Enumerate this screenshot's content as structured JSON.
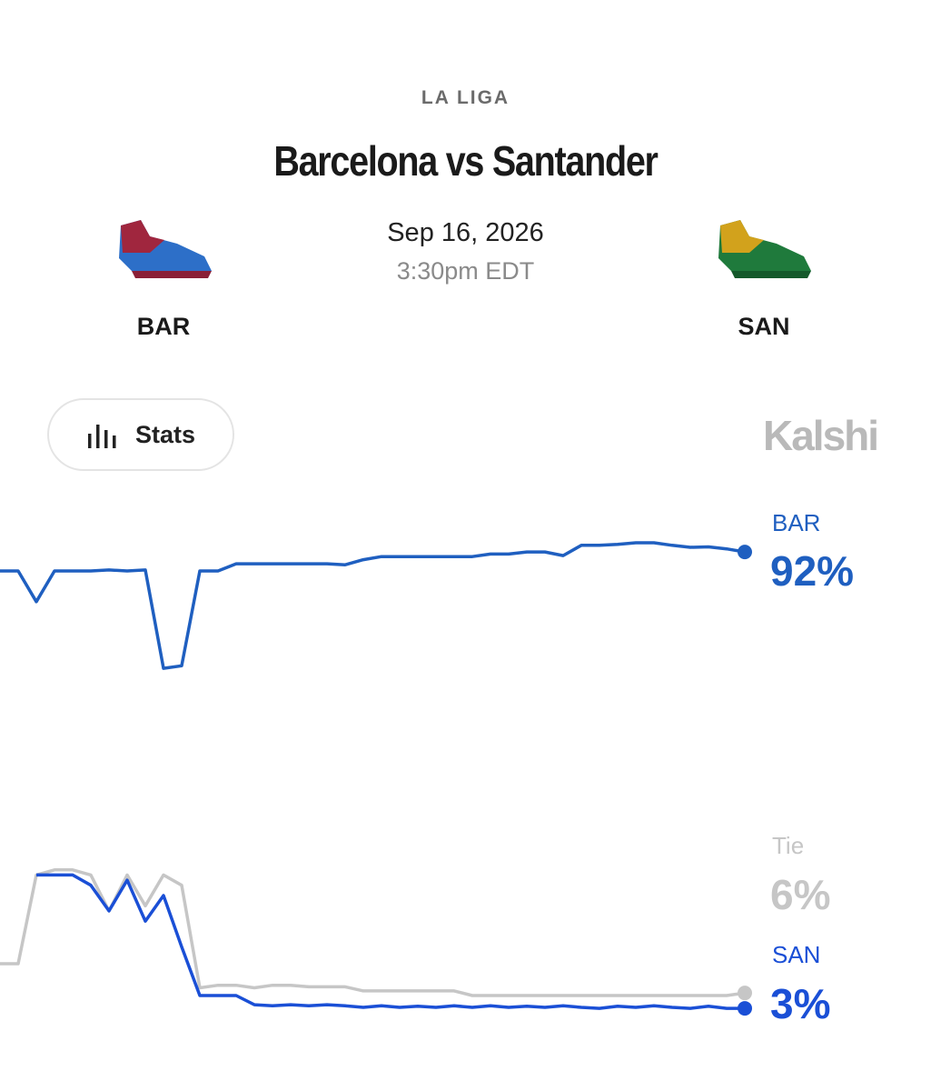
{
  "header": {
    "league": "LA LIGA",
    "title": "Barcelona vs Santander",
    "date": "Sep 16, 2026",
    "time": "3:30pm EDT",
    "home": "BAR",
    "away": "SAN"
  },
  "stats_button": "Stats",
  "brand": "Kalshi",
  "chart_data": {
    "type": "line",
    "ylim": [
      0,
      100
    ],
    "series": [
      {
        "name": "BAR",
        "color": "#1f5fc0",
        "end_label": "92%",
        "values": [
          88.3,
          88.3,
          82.3,
          88.3,
          88.3,
          88.3,
          88.5,
          88.3,
          88.5,
          69.3,
          69.8,
          88.3,
          88.3,
          89.7,
          89.7,
          89.7,
          89.7,
          89.7,
          89.7,
          89.5,
          90.5,
          91.1,
          91.1,
          91.1,
          91.1,
          91.1,
          91.1,
          91.6,
          91.6,
          92,
          92,
          91.3,
          93.3,
          93.3,
          93.5,
          93.8,
          93.8,
          93.3,
          92.9,
          93,
          92.6,
          92
        ]
      },
      {
        "name": "Tie",
        "color": "#c6c6c6",
        "end_label": "6%",
        "values": [
          11.7,
          11.7,
          29,
          30,
          30,
          29,
          22,
          29,
          23,
          29,
          27,
          7,
          7.5,
          7.5,
          7,
          7.5,
          7.5,
          7.2,
          7.2,
          7.2,
          6.4,
          6.4,
          6.4,
          6.4,
          6.4,
          6.4,
          5.5,
          5.5,
          5.5,
          5.5,
          5.5,
          5.5,
          5.5,
          5.5,
          5.5,
          5.5,
          5.5,
          5.5,
          5.5,
          5.5,
          5.5,
          6
        ]
      },
      {
        "name": "SAN",
        "color": "#1a4fd6",
        "end_label": "3%",
        "values": [
          null,
          null,
          29,
          29,
          29,
          27,
          22,
          28,
          20,
          25,
          15,
          5.5,
          5.5,
          5.5,
          3.7,
          3.5,
          3.7,
          3.5,
          3.7,
          3.5,
          3.2,
          3.5,
          3.2,
          3.4,
          3.2,
          3.5,
          3.2,
          3.5,
          3.2,
          3.4,
          3.2,
          3.5,
          3.2,
          3.0,
          3.4,
          3.2,
          3.5,
          3.2,
          3.0,
          3.4,
          3.0,
          3
        ]
      }
    ]
  }
}
